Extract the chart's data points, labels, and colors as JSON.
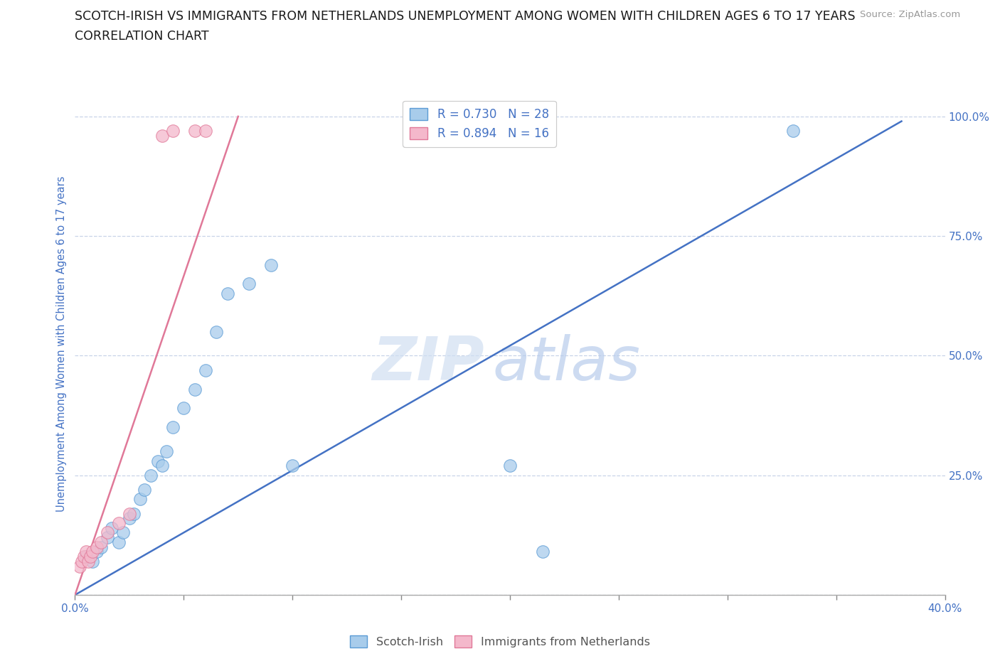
{
  "title_line1": "SCOTCH-IRISH VS IMMIGRANTS FROM NETHERLANDS UNEMPLOYMENT AMONG WOMEN WITH CHILDREN AGES 6 TO 17 YEARS",
  "title_line2": "CORRELATION CHART",
  "source_text": "Source: ZipAtlas.com",
  "ylabel": "Unemployment Among Women with Children Ages 6 to 17 years",
  "xlim": [
    0.0,
    0.4
  ],
  "ylim": [
    0.0,
    1.05
  ],
  "watermark_zip": "ZIP",
  "watermark_atlas": "atlas",
  "legend_r1": "R = 0.730",
  "legend_n1": "N = 28",
  "legend_r2": "R = 0.894",
  "legend_n2": "N = 16",
  "blue_scatter_color": "#a8cceb",
  "blue_edge_color": "#5b9bd5",
  "pink_scatter_color": "#f4b8cb",
  "pink_edge_color": "#e07898",
  "blue_line_color": "#4472c4",
  "pink_line_color": "#e07898",
  "scatter_blue_x": [
    0.005,
    0.008,
    0.01,
    0.012,
    0.015,
    0.017,
    0.02,
    0.022,
    0.025,
    0.027,
    0.03,
    0.032,
    0.035,
    0.038,
    0.04,
    0.042,
    0.045,
    0.05,
    0.055,
    0.06,
    0.065,
    0.07,
    0.08,
    0.09,
    0.1,
    0.2,
    0.215,
    0.33
  ],
  "scatter_blue_y": [
    0.08,
    0.07,
    0.09,
    0.1,
    0.12,
    0.14,
    0.11,
    0.13,
    0.16,
    0.17,
    0.2,
    0.22,
    0.25,
    0.28,
    0.27,
    0.3,
    0.35,
    0.39,
    0.43,
    0.47,
    0.55,
    0.63,
    0.65,
    0.69,
    0.27,
    0.27,
    0.09,
    0.97
  ],
  "scatter_pink_x": [
    0.002,
    0.003,
    0.004,
    0.005,
    0.006,
    0.007,
    0.008,
    0.01,
    0.012,
    0.015,
    0.02,
    0.025,
    0.04,
    0.045,
    0.055,
    0.06
  ],
  "scatter_pink_y": [
    0.06,
    0.07,
    0.08,
    0.09,
    0.07,
    0.08,
    0.09,
    0.1,
    0.11,
    0.13,
    0.15,
    0.17,
    0.96,
    0.97,
    0.97,
    0.97
  ],
  "blue_trend_x": [
    0.0,
    0.38
  ],
  "blue_trend_y": [
    0.0,
    0.99
  ],
  "pink_trend_x": [
    0.0,
    0.075
  ],
  "pink_trend_y": [
    0.0,
    1.0
  ],
  "background_color": "#ffffff",
  "grid_color": "#c8d4e8",
  "title_color": "#1a1a1a",
  "axis_label_color": "#4472c4",
  "tick_label_color": "#4472c4",
  "legend_text_color": "#4472c4",
  "bottom_legend_label1": "Scotch-Irish",
  "bottom_legend_label2": "Immigrants from Netherlands"
}
